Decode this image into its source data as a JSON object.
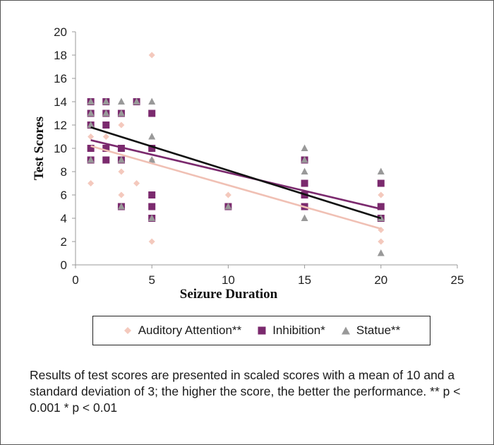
{
  "caption": "Results of test scores are presented in scaled scores with a mean of 10 and a standard deviation of 3; the higher the score, the better the performance. ** p < 0.001 * p < 0.01",
  "colors": {
    "auditory": "#f4c9bd",
    "inhibition": "#7b2a6e",
    "statue": "#999999",
    "trend_auditory": "#f0c0b4",
    "trend_inhibition": "#7b2a6e",
    "trend_statue": "#111111",
    "axis": "#999999"
  },
  "chart_data": {
    "type": "scatter",
    "title": "",
    "xlabel": "Seizure Duration",
    "ylabel": "Test Scores",
    "xlim": [
      0,
      25
    ],
    "ylim": [
      0,
      20
    ],
    "x_ticks": [
      0,
      5,
      10,
      15,
      20,
      25
    ],
    "y_ticks": [
      0,
      2,
      4,
      6,
      8,
      10,
      12,
      14,
      16,
      18,
      20
    ],
    "grid": false,
    "legend_position": "bottom",
    "series": [
      {
        "name": "Auditory Attention**",
        "marker": "diamond",
        "color_key": "auditory",
        "points": [
          [
            1,
            7
          ],
          [
            1,
            9
          ],
          [
            1,
            10
          ],
          [
            1,
            11
          ],
          [
            1,
            12
          ],
          [
            1,
            13
          ],
          [
            1,
            14
          ],
          [
            2,
            9
          ],
          [
            2,
            10
          ],
          [
            2,
            11
          ],
          [
            2,
            12
          ],
          [
            2,
            13
          ],
          [
            2,
            14
          ],
          [
            3,
            6
          ],
          [
            3,
            8
          ],
          [
            3,
            9
          ],
          [
            3,
            10
          ],
          [
            3,
            12
          ],
          [
            3,
            13
          ],
          [
            4,
            7
          ],
          [
            4,
            14
          ],
          [
            5,
            2
          ],
          [
            5,
            4
          ],
          [
            5,
            9
          ],
          [
            5,
            10
          ],
          [
            5,
            18
          ],
          [
            10,
            5
          ],
          [
            10,
            6
          ],
          [
            15,
            5
          ],
          [
            15,
            6
          ],
          [
            15,
            7
          ],
          [
            15,
            9
          ],
          [
            20,
            2
          ],
          [
            20,
            3
          ],
          [
            20,
            4
          ],
          [
            20,
            6
          ]
        ],
        "trendline": [
          [
            1,
            10.2
          ],
          [
            20,
            3.1
          ]
        ]
      },
      {
        "name": "Inhibition*",
        "marker": "square",
        "color_key": "inhibition",
        "points": [
          [
            1,
            9
          ],
          [
            1,
            10
          ],
          [
            1,
            12
          ],
          [
            1,
            13
          ],
          [
            1,
            14
          ],
          [
            2,
            9
          ],
          [
            2,
            10
          ],
          [
            2,
            12
          ],
          [
            2,
            13
          ],
          [
            2,
            14
          ],
          [
            3,
            5
          ],
          [
            3,
            9
          ],
          [
            3,
            10
          ],
          [
            3,
            13
          ],
          [
            4,
            14
          ],
          [
            5,
            4
          ],
          [
            5,
            5
          ],
          [
            5,
            6
          ],
          [
            5,
            10
          ],
          [
            5,
            13
          ],
          [
            10,
            5
          ],
          [
            15,
            5
          ],
          [
            15,
            6
          ],
          [
            15,
            7
          ],
          [
            15,
            9
          ],
          [
            20,
            4
          ],
          [
            20,
            5
          ],
          [
            20,
            7
          ]
        ],
        "trendline": [
          [
            1,
            10.7
          ],
          [
            20,
            4.8
          ]
        ]
      },
      {
        "name": "Statue**",
        "marker": "triangle",
        "color_key": "statue",
        "points": [
          [
            1,
            9
          ],
          [
            1,
            12
          ],
          [
            1,
            13
          ],
          [
            1,
            14
          ],
          [
            2,
            13
          ],
          [
            2,
            14
          ],
          [
            3,
            5
          ],
          [
            3,
            9
          ],
          [
            3,
            13
          ],
          [
            3,
            14
          ],
          [
            4,
            14
          ],
          [
            5,
            4
          ],
          [
            5,
            9
          ],
          [
            5,
            11
          ],
          [
            5,
            14
          ],
          [
            10,
            5
          ],
          [
            15,
            4
          ],
          [
            15,
            8
          ],
          [
            15,
            9
          ],
          [
            15,
            10
          ],
          [
            20,
            1
          ],
          [
            20,
            4
          ],
          [
            20,
            8
          ]
        ],
        "trendline": [
          [
            1,
            11.8
          ],
          [
            20,
            4.0
          ]
        ]
      }
    ]
  }
}
